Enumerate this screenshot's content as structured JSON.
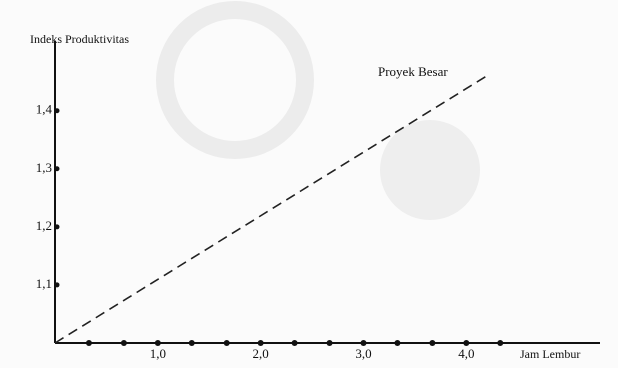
{
  "chart_data": {
    "type": "line",
    "y_label": "Indeks Produktivitas",
    "x_label": "Jam Lembur",
    "annotation": "Proyek Besar",
    "x": [
      0,
      4.2
    ],
    "series": [
      {
        "values": [
          1.0,
          1.46
        ],
        "color": "#222222",
        "dashed": true
      }
    ],
    "xlim": [
      0,
      5.3
    ],
    "ylim": [
      1.0,
      1.52
    ],
    "xticks": [
      {
        "value": 1,
        "label": "1,0"
      },
      {
        "value": 2,
        "label": "2,0"
      },
      {
        "value": 3,
        "label": "3,0"
      },
      {
        "value": 4,
        "label": "4,0"
      }
    ],
    "xminorticks": [
      0.33,
      0.67,
      1.33,
      1.67,
      2.33,
      2.67,
      3.33,
      3.67,
      4.33
    ],
    "yticks": [
      {
        "value": 1.1,
        "label": "1,1"
      },
      {
        "value": 1.2,
        "label": "1,2"
      },
      {
        "value": 1.3,
        "label": "1,3"
      },
      {
        "value": 1.4,
        "label": "1,4"
      }
    ],
    "grid": false
  }
}
